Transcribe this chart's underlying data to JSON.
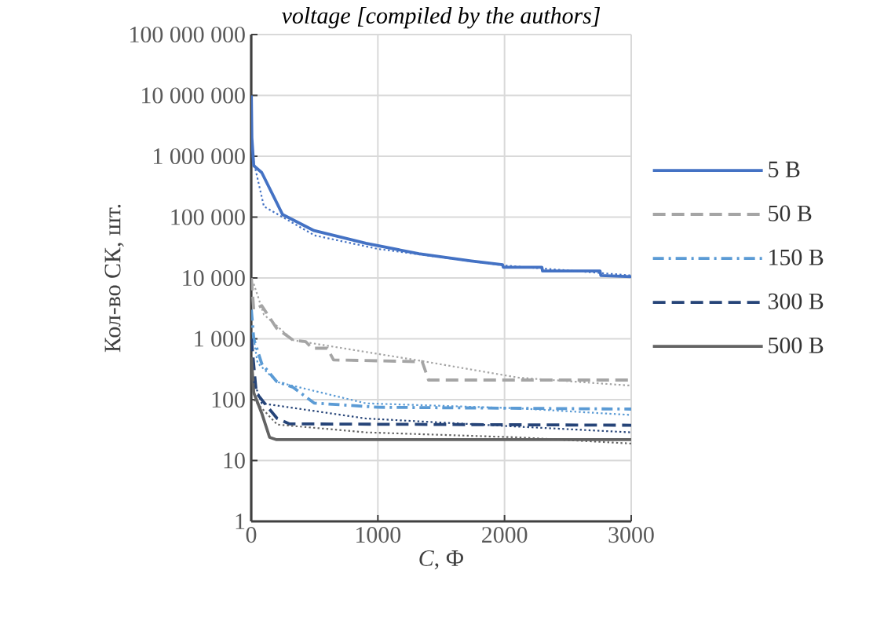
{
  "chart_data": {
    "type": "line",
    "title": "voltage [compiled by the authors]",
    "xlabel": "*C*, Ф",
    "ylabel": "Кол-во СК, шт.",
    "log": "y",
    "grid": true,
    "legend": "right",
    "marker": "none",
    "xlim": [
      0,
      3000
    ],
    "xticks": [
      0,
      1000,
      2000,
      3000
    ],
    "ylim": [
      1,
      100000000
    ],
    "yticks": [
      1,
      10,
      100,
      {
        "value": 1000,
        "label": "1 000"
      },
      {
        "value": 10000,
        "label": "10 000"
      },
      {
        "value": 100000,
        "label": "100 000"
      },
      {
        "value": 1000000,
        "label": "1 000 000"
      },
      {
        "value": 10000000,
        "label": "10 000 000"
      },
      {
        "value": 100000000,
        "label": "100 000 000"
      }
    ],
    "series": [
      {
        "name": "5 В",
        "color": "#4472c4",
        "line_style": "solid",
        "x": [
          1,
          5,
          20,
          83,
          248,
          496,
          906,
          1323,
          1737,
          1985,
          1990,
          2295,
          2300,
          2754,
          2760,
          3000
        ],
        "values": [
          10000000,
          2000000,
          700000,
          540000,
          110000,
          60000,
          37000,
          25000,
          19000,
          16500,
          15000,
          15000,
          13000,
          13000,
          11000,
          10500
        ]
      },
      {
        "name": "50 В",
        "color": "#a5a5a5",
        "line_style": "dashed",
        "x": [
          1,
          20,
          83,
          200,
          330,
          430,
          480,
          600,
          650,
          1350,
          1400,
          3000
        ],
        "values": [
          10000,
          3000,
          3500,
          1500,
          950,
          900,
          700,
          700,
          450,
          420,
          210,
          210
        ]
      },
      {
        "name": "150 В",
        "color": "#5b9bd5",
        "line_style": "dashdot",
        "x": [
          1,
          20,
          83,
          200,
          330,
          496,
          1000,
          3000
        ],
        "values": [
          3000,
          1000,
          390,
          200,
          160,
          88,
          75,
          70
        ]
      },
      {
        "name": "300 В",
        "color": "#264478",
        "line_style": "dashed",
        "x": [
          1,
          40,
          100,
          205,
          300,
          3000
        ],
        "values": [
          1000,
          130,
          90,
          49,
          40,
          38
        ]
      },
      {
        "name": "500 В",
        "color": "#636363",
        "line_style": "solid",
        "x": [
          1,
          20,
          83,
          145,
          200,
          3000
        ],
        "values": [
          500,
          130,
          60,
          24,
          22,
          22
        ]
      },
      {
        "type": "line",
        "color": "#4472c4",
        "line_style": "dotted",
        "x": [
          10,
          100,
          500,
          1000,
          2000,
          3000
        ],
        "values": [
          1000000,
          150000,
          50000,
          30000,
          16000,
          11000
        ]
      },
      {
        "type": "line",
        "color": "#a5a5a5",
        "line_style": "dotted",
        "x": [
          20,
          100,
          330,
          1323,
          2110,
          3000
        ],
        "values": [
          8000,
          2500,
          950,
          440,
          230,
          170
        ]
      },
      {
        "type": "line",
        "color": "#5b9bd5",
        "line_style": "dotted",
        "x": [
          20,
          50,
          205,
          906,
          2110,
          3000
        ],
        "values": [
          1000,
          400,
          195,
          87,
          72,
          56
        ]
      },
      {
        "type": "line",
        "color": "#264478",
        "line_style": "dotted",
        "x": [
          20,
          83,
          906,
          2110,
          3000
        ],
        "values": [
          200,
          87,
          49,
          36,
          29
        ]
      },
      {
        "type": "line",
        "color": "#636363",
        "line_style": "dotted",
        "x": [
          20,
          205,
          906,
          2110,
          3000
        ],
        "values": [
          100,
          39,
          29,
          24,
          19
        ]
      }
    ]
  }
}
